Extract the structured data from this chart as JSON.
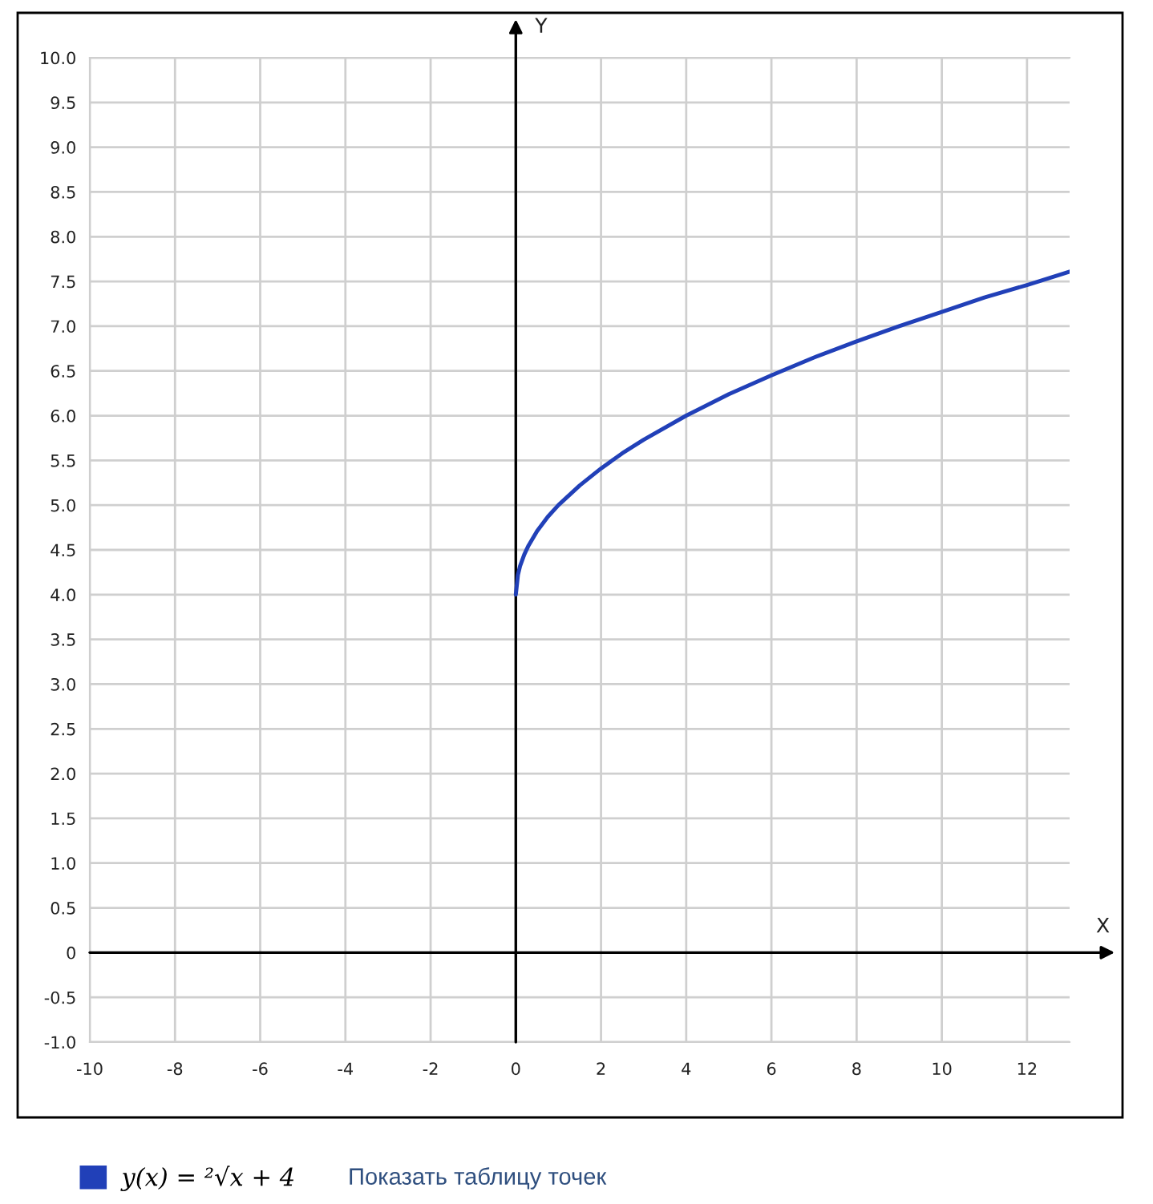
{
  "chart_data": {
    "type": "line",
    "xlabel": "X",
    "ylabel": "Y",
    "x": [
      0,
      0.05,
      0.1,
      0.2,
      0.3,
      0.5,
      0.75,
      1,
      1.5,
      2,
      2.5,
      3,
      4,
      5,
      6,
      7,
      8,
      9,
      10,
      11,
      12,
      13
    ],
    "series": [
      {
        "name": "y(x) = ²√x + 4",
        "color": "#2140b8",
        "values": [
          4.0,
          4.22,
          4.32,
          4.45,
          4.55,
          4.71,
          4.87,
          5.0,
          5.22,
          5.41,
          5.58,
          5.73,
          6.0,
          6.24,
          6.45,
          6.65,
          6.83,
          7.0,
          7.16,
          7.32,
          7.46,
          7.61
        ]
      }
    ],
    "xlim": [
      -10,
      13
    ],
    "xticks": [
      -10,
      -8,
      -6,
      -4,
      -2,
      0,
      2,
      4,
      6,
      8,
      10,
      12
    ],
    "ylim": [
      -1,
      10
    ],
    "yticks": [
      {
        "value": 10,
        "label": "10.0"
      },
      9.5,
      {
        "value": 9,
        "label": "9.0"
      },
      8.5,
      {
        "value": 8,
        "label": "8.0"
      },
      7.5,
      {
        "value": 7,
        "label": "7.0"
      },
      6.5,
      {
        "value": 6,
        "label": "6.0"
      },
      5.5,
      {
        "value": 5,
        "label": "5.0"
      },
      4.5,
      {
        "value": 4,
        "label": "4.0"
      },
      3.5,
      {
        "value": 3,
        "label": "3.0"
      },
      2.5,
      {
        "value": 2,
        "label": "2.0"
      },
      1.5,
      {
        "value": 1,
        "label": "1.0"
      },
      0.5,
      0,
      -0.5,
      {
        "value": -1,
        "label": "-1.0"
      }
    ],
    "grid": true,
    "legend": "bottom",
    "line_style": "solid",
    "annotations": [
      "Показать таблицу точек"
    ]
  }
}
